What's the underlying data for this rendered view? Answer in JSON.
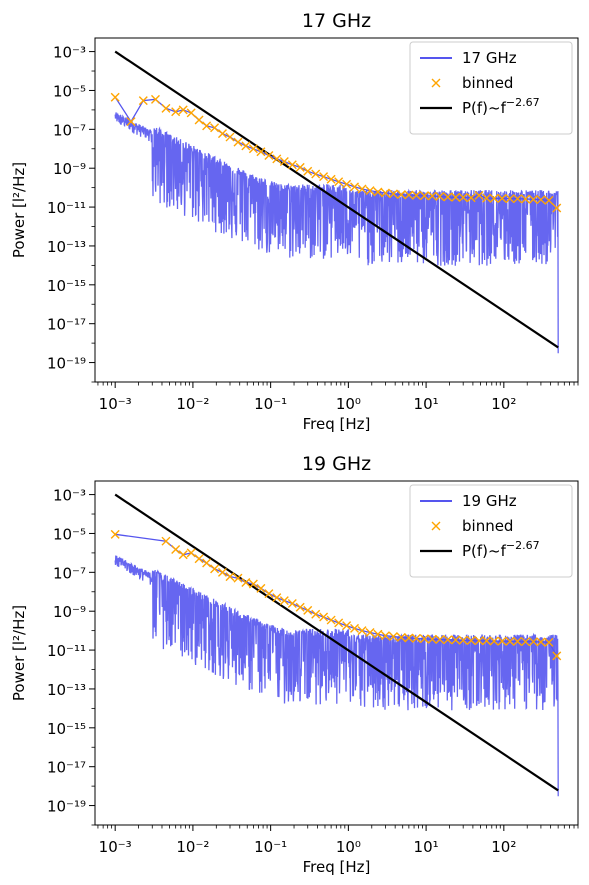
{
  "chart_data": [
    {
      "type": "line",
      "title": "17 GHz",
      "xlabel": "Freq [Hz]",
      "ylabel": "Power [l²/Hz]",
      "xscale": "log",
      "yscale": "log",
      "xlim": [
        0.00055,
        900
      ],
      "ylim": [
        1e-20,
        0.005
      ],
      "xticks": [
        "10⁻³",
        "10⁻²",
        "10⁻¹",
        "10⁰",
        "10¹",
        "10²"
      ],
      "yticks": [
        "10⁻³",
        "10⁻⁵",
        "10⁻⁷",
        "10⁻⁹",
        "10⁻¹¹",
        "10⁻¹³",
        "10⁻¹⁵",
        "10⁻¹⁷",
        "10⁻¹⁹"
      ],
      "legend": {
        "position": "top-right",
        "entries": [
          "17 GHz",
          "binned",
          "P(f)~f"
        ],
        "exponent": "−2.67"
      },
      "colors": {
        "spectrum": "#5555ee",
        "binned": "#ffa500",
        "fit": "#000000"
      },
      "series": [
        {
          "name": "17 GHz",
          "kind": "raw spectrum",
          "f_min": 0.001,
          "f_max": 500,
          "level_above_1Hz": 3e-11
        },
        {
          "name": "binned",
          "x": [
            0.001,
            0.0016,
            0.0023,
            0.0033,
            0.0045,
            0.006,
            0.0075,
            0.0095,
            0.012,
            0.015,
            0.019,
            0.024,
            0.03,
            0.038,
            0.048,
            0.06,
            0.075,
            0.095,
            0.12,
            0.15,
            0.19,
            0.24,
            0.3,
            0.38,
            0.48,
            0.6,
            0.75,
            0.95,
            1.2,
            1.5,
            1.9,
            2.4,
            3,
            3.8,
            4.8,
            6,
            7.5,
            9.5,
            12,
            15,
            19,
            24,
            30,
            38,
            48,
            60,
            75,
            95,
            120,
            150,
            190,
            240,
            300,
            380,
            480
          ],
          "y": [
            4.5e-06,
            2.5e-07,
            3e-06,
            3.5e-06,
            1.2e-06,
            8e-07,
            1e-06,
            7e-07,
            3e-07,
            1.5e-07,
            1.2e-07,
            6e-08,
            4e-08,
            2.2e-08,
            1.4e-08,
            1e-08,
            7e-09,
            4.5e-09,
            3e-09,
            2.2e-09,
            1.5e-09,
            1.1e-09,
            7e-10,
            5e-10,
            3.7e-10,
            2.7e-10,
            2e-10,
            1.5e-10,
            1.1e-10,
            8.5e-11,
            7e-11,
            6e-11,
            5.3e-11,
            4.8e-11,
            4.4e-11,
            4.2e-11,
            4e-11,
            3.8e-11,
            3.7e-11,
            3.5e-11,
            3.3e-11,
            3.2e-11,
            3.1e-11,
            3e-11,
            4e-11,
            2.9e-11,
            2.8e-11,
            2.8e-11,
            2.7e-11,
            2.7e-11,
            2.6e-11,
            2.5e-11,
            2.4e-11,
            2.2e-11,
            9e-12
          ]
        },
        {
          "name": "P(f)~f^-2.67",
          "x": [
            0.001,
            500
          ],
          "y": [
            0.001,
            6e-19
          ]
        }
      ]
    },
    {
      "type": "line",
      "title": "19 GHz",
      "xlabel": "Freq [Hz]",
      "ylabel": "Power [l²/Hz]",
      "xscale": "log",
      "yscale": "log",
      "xlim": [
        0.00055,
        900
      ],
      "ylim": [
        1e-20,
        0.005
      ],
      "xticks": [
        "10⁻³",
        "10⁻²",
        "10⁻¹",
        "10⁰",
        "10¹",
        "10²"
      ],
      "yticks": [
        "10⁻³",
        "10⁻⁵",
        "10⁻⁷",
        "10⁻⁹",
        "10⁻¹¹",
        "10⁻¹³",
        "10⁻¹⁵",
        "10⁻¹⁷",
        "10⁻¹⁹"
      ],
      "legend": {
        "position": "top-right",
        "entries": [
          "19 GHz",
          "binned",
          "P(f)~f"
        ],
        "exponent": "−2.67"
      },
      "colors": {
        "spectrum": "#5555ee",
        "binned": "#ffa500",
        "fit": "#000000"
      },
      "series": [
        {
          "name": "19 GHz",
          "kind": "raw spectrum",
          "f_min": 0.001,
          "f_max": 500,
          "level_above_1Hz": 2.5e-11
        },
        {
          "name": "binned",
          "x": [
            0.001,
            0.0045,
            0.006,
            0.0075,
            0.0095,
            0.012,
            0.015,
            0.019,
            0.024,
            0.03,
            0.038,
            0.048,
            0.06,
            0.075,
            0.095,
            0.12,
            0.15,
            0.19,
            0.24,
            0.3,
            0.38,
            0.48,
            0.6,
            0.75,
            0.95,
            1.2,
            1.5,
            1.9,
            2.4,
            3,
            3.8,
            4.8,
            6,
            7.5,
            9.5,
            12,
            15,
            19,
            24,
            30,
            38,
            48,
            60,
            75,
            95,
            120,
            150,
            190,
            240,
            300,
            380,
            480
          ],
          "y": [
            9e-06,
            4e-06,
            1.5e-06,
            8e-07,
            1e-06,
            5e-07,
            3e-07,
            1.5e-07,
            1e-07,
            6e-08,
            5e-08,
            3e-08,
            2.5e-08,
            1.5e-08,
            8e-09,
            5e-09,
            3.5e-09,
            2.5e-09,
            1.6e-09,
            1.1e-09,
            7e-10,
            5e-10,
            3.5e-10,
            2.5e-10,
            1.8e-10,
            1.3e-10,
            1e-10,
            8e-11,
            6.5e-11,
            5.5e-11,
            5e-11,
            4.5e-11,
            4.2e-11,
            4e-11,
            3.8e-11,
            3.6e-11,
            3.5e-11,
            3.4e-11,
            3.3e-11,
            3.2e-11,
            3.1e-11,
            3e-11,
            3e-11,
            2.9e-11,
            2.9e-11,
            2.8e-11,
            2.8e-11,
            2.7e-11,
            2.7e-11,
            2.6e-11,
            2.5e-11,
            5e-12
          ]
        },
        {
          "name": "P(f)~f^-2.67",
          "x": [
            0.001,
            500
          ],
          "y": [
            0.001,
            6e-19
          ]
        }
      ]
    }
  ]
}
